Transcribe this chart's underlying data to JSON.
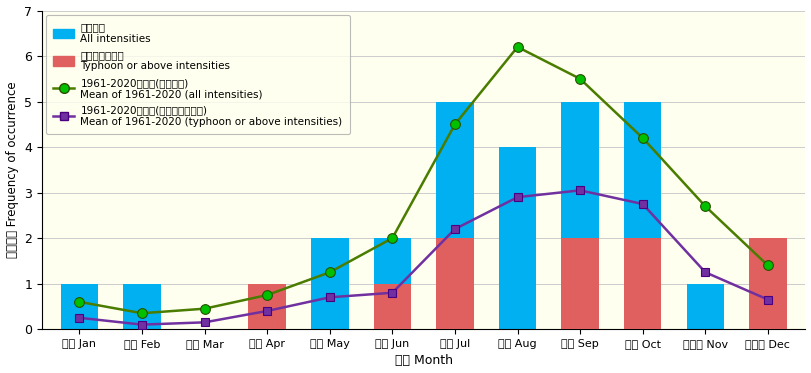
{
  "months": [
    "一月 Jan",
    "二月 Feb",
    "三月 Mar",
    "四月 Apr",
    "五月 May",
    "六月 Jun",
    "七月 Jul",
    "八月 Aug",
    "九月 Sep",
    "十月 Oct",
    "十一月 Nov",
    "十二月 Dec"
  ],
  "all_intensities": [
    1,
    1,
    0,
    1,
    2,
    2,
    5,
    4,
    5,
    5,
    1,
    1
  ],
  "typhoon_above": [
    0,
    0,
    0,
    1,
    0,
    1,
    2,
    0,
    2,
    2,
    0,
    2
  ],
  "mean_all": [
    0.6,
    0.35,
    0.45,
    0.75,
    1.25,
    2.0,
    4.5,
    6.2,
    5.5,
    4.2,
    2.7,
    1.4
  ],
  "mean_typhoon": [
    0.25,
    0.1,
    0.15,
    0.4,
    0.7,
    0.8,
    2.2,
    2.9,
    3.05,
    2.75,
    1.25,
    0.65
  ],
  "bar_color_all": "#00b0f0",
  "bar_color_typhoon": "#e06060",
  "line_color_all": "#4a7c00",
  "line_color_typhoon": "#7030a0",
  "marker_color_all": "#00c000",
  "marker_color_typhoon": "#7030a0",
  "ylim": [
    0,
    7
  ],
  "yticks": [
    0,
    1,
    2,
    3,
    4,
    5,
    6,
    7
  ],
  "ylabel_zh": "出現次數",
  "ylabel_en": "Frequency of occurrence",
  "xlabel_zh": "月份",
  "xlabel_en": "Month",
  "legend_label1_zh": "所有級別",
  "legend_label1_en": "All intensities",
  "legend_label2_zh": "颶風或以上級別",
  "legend_label2_en": "Typhoon or above intensities",
  "legend_label3_zh": "1961-2020年平均(所有級別)",
  "legend_label3_en": "Mean of 1961-2020 (all intensities)",
  "legend_label4_zh": "1961-2020年平均(颶風或以上級別)",
  "legend_label4_en": "Mean of 1961-2020 (typhoon or above intensities)",
  "background_color": "#fffff0",
  "legend_bg": "#fffff0"
}
